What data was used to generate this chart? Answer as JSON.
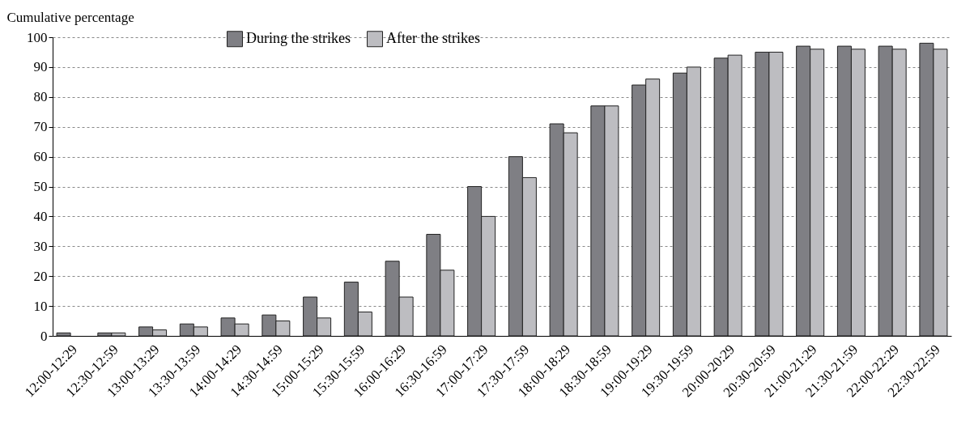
{
  "chart_data": {
    "type": "bar",
    "ylabel": "Cumulative percentage",
    "categories": [
      "12:00-12:29",
      "12:30-12:59",
      "13:00-13:29",
      "13:30-13:59",
      "14:00-14:29",
      "14:30-14:59",
      "15:00-15:29",
      "15:30-15:59",
      "16:00-16:29",
      "16:30-16:59",
      "17:00-17:29",
      "17:30-17:59",
      "18:00-18:29",
      "18:30-18:59",
      "19:00-19:29",
      "19:30-19:59",
      "20:00-20:29",
      "20:30-20:59",
      "21:00-21:29",
      "21:30-21:59",
      "22:00-22:29",
      "22:30-22:59"
    ],
    "series": [
      {
        "name": "During the strikes",
        "color": "#7f7f84",
        "values": [
          1,
          1,
          3,
          4,
          6,
          7,
          13,
          18,
          25,
          34,
          50,
          60,
          71,
          77,
          84,
          88,
          93,
          95,
          97,
          97,
          97,
          98
        ]
      },
      {
        "name": "After the strikes",
        "color": "#bdbdc1",
        "values": [
          null,
          1,
          2,
          3,
          4,
          5,
          6,
          8,
          13,
          22,
          40,
          53,
          68,
          77,
          86,
          90,
          94,
          95,
          96,
          96,
          96,
          96
        ]
      }
    ],
    "ylim": [
      0,
      100
    ],
    "yticks": [
      0,
      10,
      20,
      30,
      40,
      50,
      60,
      70,
      80,
      90,
      100
    ],
    "grid": "y",
    "legend": "top"
  }
}
